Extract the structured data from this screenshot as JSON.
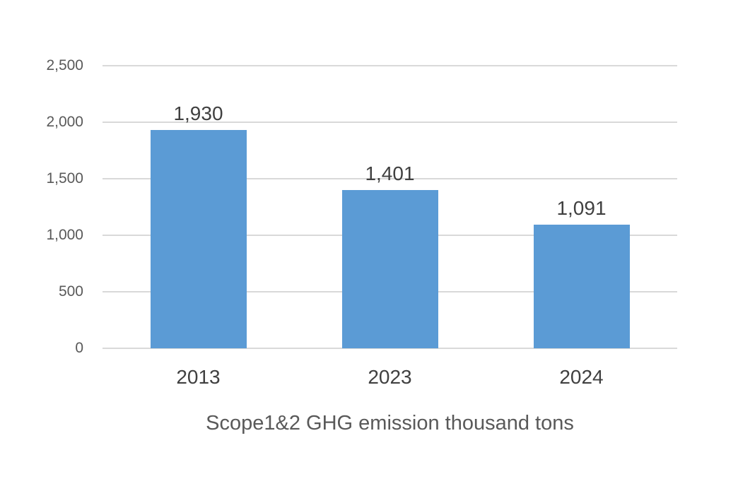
{
  "chart_data": {
    "type": "bar",
    "title": "Scope1&2 GHG emission thousand tons",
    "categories": [
      "2013",
      "2023",
      "2024"
    ],
    "values": [
      1930,
      1401,
      1091
    ],
    "value_labels": [
      "1,930",
      "1,401",
      "1,091"
    ],
    "ylim": [
      0,
      2500
    ],
    "ytick_step": 500,
    "ytick_labels": [
      "0",
      "500",
      "1,000",
      "1,500",
      "2,000",
      "2,500"
    ],
    "grid": true,
    "legend": "none",
    "bar_color": "#5B9BD5",
    "gridline_color": "#D9D9D9",
    "ytick_text_color": "#595959",
    "data_label_text_color": "#404040",
    "xtick_text_color": "#404040",
    "title_text_color": "#595959",
    "background_color": "#FFFFFF"
  }
}
